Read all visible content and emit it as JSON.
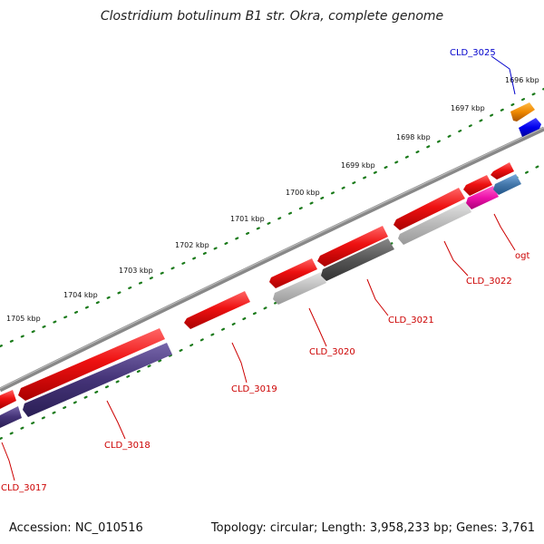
{
  "title": "Clostridium botulinum B1 str. Okra, complete genome",
  "footer": {
    "accession": "Accession: NC_010516",
    "summary": "Topology: circular; Length: 3,958,233 bp; Genes: 3,761"
  },
  "ticks": [
    "1696 kbp",
    "1697 kbp",
    "1698 kbp",
    "1699 kbp",
    "1700 kbp",
    "1701 kbp",
    "1702 kbp",
    "1703 kbp",
    "1704 kbp",
    "1705 kbp"
  ],
  "gene_labels": [
    {
      "text": "CLD_3025",
      "color": "#0000cc"
    },
    {
      "text": "ogt",
      "color": "#cc0000"
    },
    {
      "text": "CLD_3022",
      "color": "#cc0000"
    },
    {
      "text": "CLD_3021",
      "color": "#cc0000"
    },
    {
      "text": "CLD_3020",
      "color": "#cc0000"
    },
    {
      "text": "CLD_3019",
      "color": "#cc0000"
    },
    {
      "text": "CLD_3018",
      "color": "#cc0000"
    },
    {
      "text": "CLD_3017",
      "color": "#cc0000"
    }
  ],
  "colors": {
    "cds": "#ee1111",
    "backbone": "#888888",
    "tick_dots": "#1a7a1a",
    "orange": "#ee8800",
    "blue": "#0000ee",
    "magenta": "#ee11aa",
    "steel_blue": "#4477aa",
    "indigo": "#443377",
    "light_gray": "#bbbbbb",
    "dark_gray": "#555555"
  }
}
